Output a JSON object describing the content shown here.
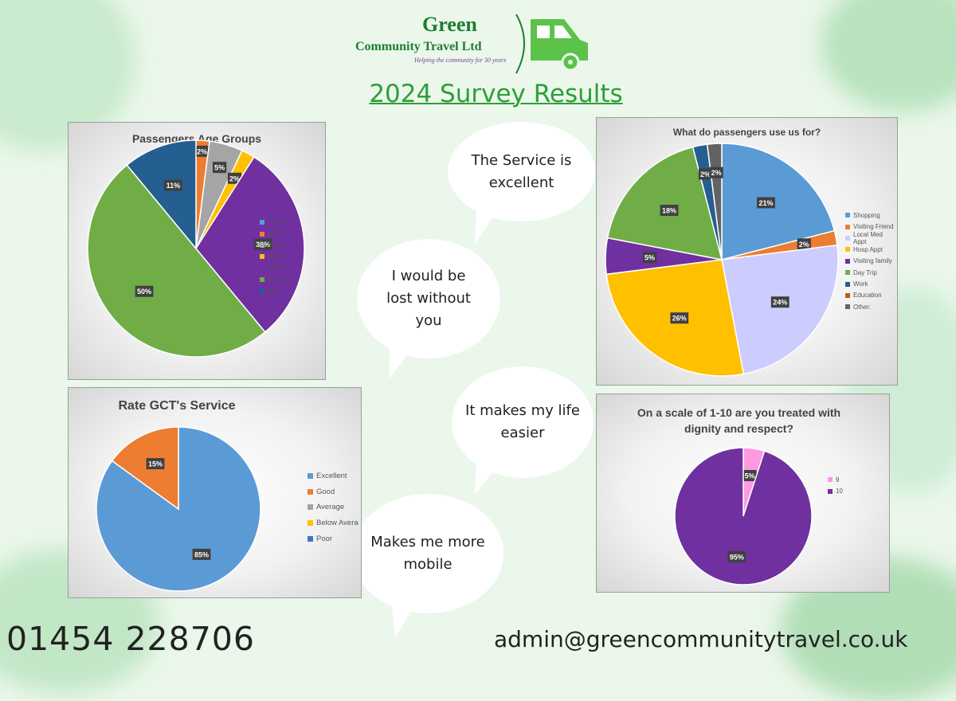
{
  "logo": {
    "line1": "Green",
    "line2": "Community Travel Ltd",
    "tagline": "Helping the community for 30 years"
  },
  "title": "2024 Survey Results",
  "quotes": [
    "The Service is excellent",
    "I would be lost without you",
    "It makes my life easier",
    "Makes me more mobile"
  ],
  "contact": {
    "phone": "01454 228706",
    "email": "admin@greencommunitytravel.co.uk"
  },
  "colors": {
    "brand_green": "#1e7d32",
    "title_green": "#2e9e3a",
    "van_green": "#5cc24a"
  },
  "chart_data": [
    {
      "type": "pie",
      "title": "Passengers Age Groups",
      "categories": [
        "17-25",
        "26-40",
        "40-59",
        "60-70",
        "71-79",
        "80-90",
        "90+"
      ],
      "values": [
        0,
        2,
        5,
        2,
        30,
        50,
        11
      ],
      "labels": [
        "",
        "2%",
        "5%",
        "2%",
        "30%",
        "50%",
        "11%"
      ],
      "colors": [
        "#5b9bd5",
        "#ed7d31",
        "#a5a5a5",
        "#ffc000",
        "#7030a0",
        "#70ad47",
        "#255e91"
      ],
      "legend": "right"
    },
    {
      "type": "pie",
      "title": "What do passengers use us for?",
      "categories": [
        "Shopping",
        "Visiting Friend",
        "Local Med Appt",
        "Hosp Appt",
        "Visiting family",
        "Day Trip",
        "Work",
        "Education",
        "Other:"
      ],
      "values": [
        21,
        2,
        24,
        26,
        5,
        18,
        2,
        0,
        2
      ],
      "labels": [
        "21%",
        "2%",
        "24%",
        "26%",
        "5%",
        "18%",
        "2%",
        "",
        "2%"
      ],
      "colors": [
        "#5b9bd5",
        "#ed7d31",
        "#ccccff",
        "#ffc000",
        "#7030a0",
        "#70ad47",
        "#255e91",
        "#c55a11",
        "#636363"
      ],
      "legend": "right"
    },
    {
      "type": "pie",
      "title": "Rate GCT's Service",
      "categories": [
        "Excellent",
        "Good",
        "Average",
        "Below Avera",
        "Poor"
      ],
      "values": [
        85,
        15,
        0,
        0,
        0
      ],
      "labels": [
        "85%",
        "15%",
        "",
        "",
        ""
      ],
      "colors": [
        "#5b9bd5",
        "#ed7d31",
        "#a5a5a5",
        "#ffc000",
        "#4472c4"
      ],
      "legend": "right"
    },
    {
      "type": "pie",
      "title": "On a scale of 1-10 are you treated with dignity and respect?",
      "categories": [
        "9",
        "10"
      ],
      "values": [
        5,
        95
      ],
      "labels": [
        "5%",
        "95%"
      ],
      "colors": [
        "#ff99e0",
        "#7030a0"
      ],
      "legend": "right"
    }
  ]
}
